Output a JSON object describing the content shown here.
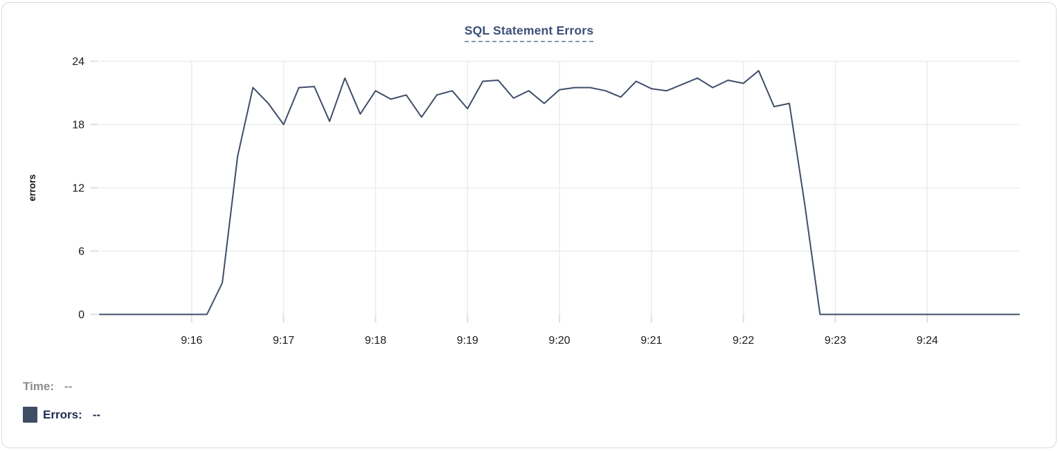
{
  "chart_data": {
    "type": "line",
    "title": "SQL Statement Errors",
    "ylabel": "errors",
    "ylim": [
      0,
      24
    ],
    "yticks": [
      0,
      6,
      12,
      18,
      24
    ],
    "x_tick_labels": [
      "9:16",
      "9:17",
      "9:18",
      "9:19",
      "9:20",
      "9:21",
      "9:22",
      "9:23",
      "9:24"
    ],
    "x_range": [
      "9:15:00",
      "9:25:00"
    ],
    "sample_interval_seconds": 10,
    "grid": true,
    "legend_position": "bottom-left",
    "series": [
      {
        "name": "Errors",
        "start": "9:15:00",
        "values": [
          0,
          0,
          0,
          0,
          0,
          0,
          0,
          0,
          3,
          15,
          21.5,
          20,
          18,
          21.5,
          21.6,
          18.3,
          22.4,
          19,
          21.2,
          20.4,
          20.8,
          18.7,
          20.8,
          21.2,
          19.5,
          22.1,
          22.2,
          20.5,
          21.2,
          20,
          21.3,
          21.5,
          21.5,
          21.2,
          20.6,
          22.1,
          21.4,
          21.2,
          21.8,
          22.4,
          21.5,
          22.2,
          21.9,
          23.1,
          19.7,
          20,
          10.5,
          0,
          0,
          0,
          0,
          0,
          0,
          0,
          0,
          0,
          0,
          0,
          0,
          0,
          0
        ]
      }
    ]
  },
  "legend": {
    "time": {
      "label": "Time:",
      "value": "--"
    },
    "errors": {
      "label": "Errors:",
      "value": "--"
    }
  },
  "colors": {
    "line": "#3e4d68",
    "legend_swatch": "#3d4d63",
    "errors_text": "#1d2b50",
    "time_text": "#8c8c8c",
    "title_text": "#3c5078",
    "title_underline": "#8796b5",
    "grid": "#ececec",
    "tick_mark": "#e0e0e0",
    "tick_label": "#1a1a1a"
  }
}
